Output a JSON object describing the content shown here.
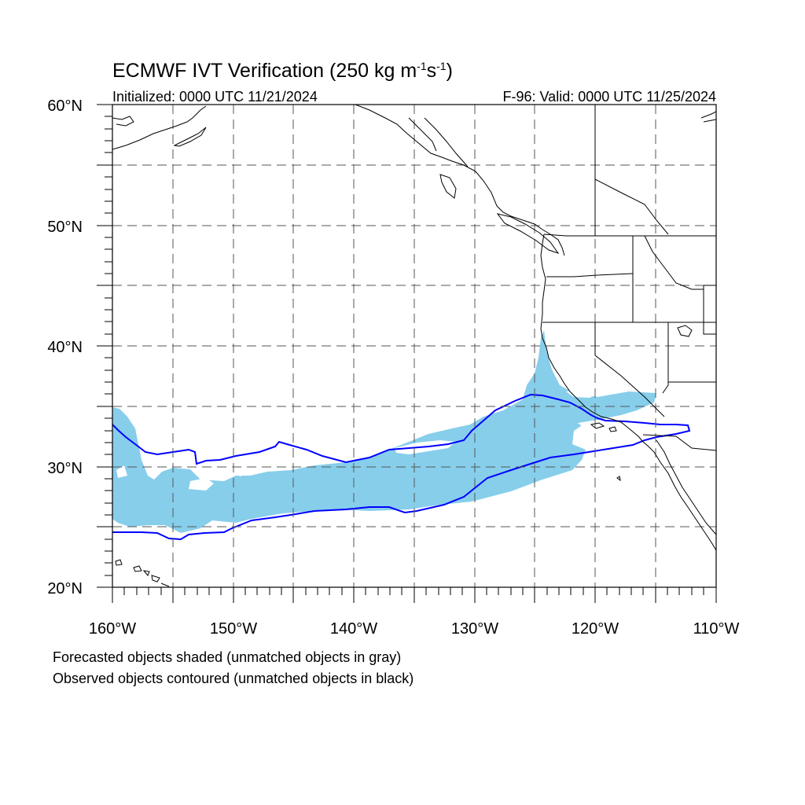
{
  "figure": {
    "title_main": "ECMWF IVT Verification (250 kg m",
    "title_exp1": "-1",
    "title_mid": "s",
    "title_exp2": "-1",
    "title_close": ")",
    "initialized": "Initialized: 0000 UTC 11/21/2024",
    "valid": "F-96: Valid: 0000 UTC 11/25/2024",
    "footnote_1": "Forecasted objects shaded (unmatched objects in gray)",
    "footnote_2": "Observed objects contoured (unmatched objects in black)"
  },
  "axes": {
    "lat_labels": [
      "60°N",
      "50°N",
      "40°N",
      "30°N",
      "20°N"
    ],
    "lon_labels": [
      "160°W",
      "150°W",
      "140°W",
      "130°W",
      "120°W",
      "110°W"
    ]
  },
  "map": {
    "lon_range": [
      -160,
      -110
    ],
    "lat_range": [
      20,
      60
    ],
    "gridlines": "dashed, every 5 degrees",
    "forecast_fill_color": "#87CEEB",
    "observed_contour_color": "#0000FF",
    "coastline_color": "#000000"
  }
}
